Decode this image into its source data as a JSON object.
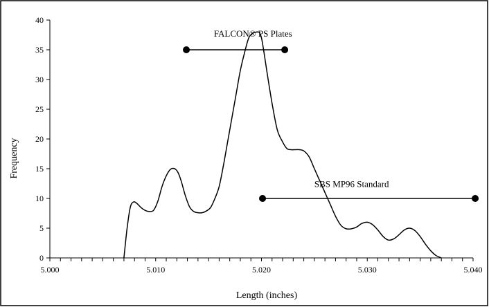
{
  "chart_data": {
    "type": "line",
    "xlabel": "Length (inches)",
    "ylabel": "Frequency",
    "xlim": [
      5.0,
      5.04
    ],
    "ylim": [
      0,
      40
    ],
    "xticks": [
      "5.000",
      "5.010",
      "5.020",
      "5.030",
      "5.040"
    ],
    "yticks": [
      "0",
      "5",
      "10",
      "15",
      "20",
      "25",
      "30",
      "35",
      "40"
    ],
    "grid": false,
    "series": [
      {
        "x": [
          5.007,
          5.0073,
          5.0076,
          5.0079,
          5.0082,
          5.0086,
          5.009,
          5.0094,
          5.0098,
          5.0102,
          5.0106,
          5.011,
          5.0114,
          5.0118,
          5.0121,
          5.0124,
          5.0128,
          5.0132,
          5.0136,
          5.014,
          5.0144,
          5.0148,
          5.0152,
          5.0156,
          5.016,
          5.0164,
          5.0168,
          5.0172,
          5.0176,
          5.018,
          5.0184,
          5.0188,
          5.0192,
          5.0196,
          5.0198,
          5.02,
          5.0202,
          5.0205,
          5.021,
          5.0215,
          5.022,
          5.0224,
          5.0228,
          5.0232,
          5.0236,
          5.024,
          5.0245,
          5.025,
          5.0255,
          5.026,
          5.0265,
          5.027,
          5.0275,
          5.028,
          5.0285,
          5.029,
          5.0295,
          5.03,
          5.0305,
          5.031,
          5.0315,
          5.032,
          5.0325,
          5.033,
          5.0335,
          5.034,
          5.0345,
          5.035,
          5.0355,
          5.036,
          5.0365,
          5.037
        ],
        "values": [
          0,
          5,
          8.5,
          9.4,
          9.2,
          8.5,
          8.0,
          7.8,
          8.0,
          9.5,
          12.0,
          13.8,
          14.9,
          15.0,
          14.4,
          13.0,
          10.5,
          8.6,
          7.8,
          7.6,
          7.6,
          7.9,
          8.5,
          10.0,
          12.0,
          15.5,
          19.5,
          23.5,
          27.5,
          31.5,
          34.5,
          37.0,
          37.8,
          38.0,
          37.9,
          37.0,
          35.0,
          31.5,
          26.0,
          21.5,
          19.5,
          18.4,
          18.2,
          18.2,
          18.2,
          18.0,
          17.0,
          15.0,
          13.0,
          11.0,
          9.0,
          7.0,
          5.5,
          4.9,
          4.9,
          5.2,
          5.8,
          6.0,
          5.6,
          4.7,
          3.6,
          3.0,
          3.2,
          3.9,
          4.7,
          5.0,
          4.6,
          3.6,
          2.3,
          1.2,
          0.4,
          0
        ]
      }
    ],
    "annotations": [
      {
        "label": "FALCON® PS Plates",
        "x1": 5.0129,
        "x2": 5.0222,
        "y": 35,
        "label_x": 5.0155,
        "label_y": 37.2
      },
      {
        "label": "SBS MP96 Standard",
        "x1": 5.0201,
        "x2": 5.0402,
        "y": 10,
        "label_x": 5.025,
        "label_y": 11.9
      }
    ]
  }
}
